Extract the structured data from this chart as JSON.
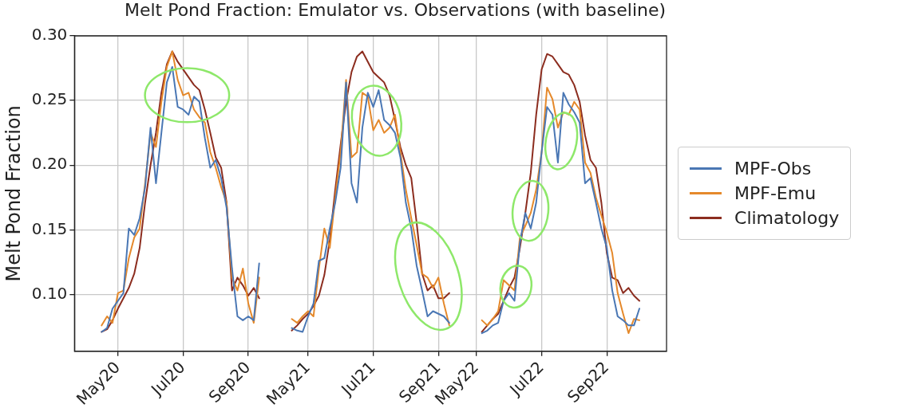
{
  "chart_data": {
    "type": "line",
    "title": "Melt Pond Fraction: Emulator vs. Observations (with baseline)",
    "ylabel": "Melt Pond Fraction",
    "categories": [
      null,
      null,
      null,
      null,
      null,
      null,
      null,
      null,
      "May20",
      null,
      null,
      null,
      null,
      null,
      null,
      null,
      null,
      null,
      null,
      null,
      "Jul20",
      null,
      null,
      null,
      null,
      null,
      null,
      null,
      null,
      null,
      null,
      null,
      "Sep20",
      null,
      null,
      null,
      null,
      null,
      null,
      null,
      null,
      null,
      null,
      "May21",
      null,
      null,
      null,
      null,
      null,
      null,
      null,
      null,
      null,
      null,
      null,
      "Jul21",
      null,
      null,
      null,
      null,
      null,
      null,
      null,
      null,
      null,
      null,
      null,
      "Sep21",
      null,
      null,
      null,
      null,
      null,
      null,
      "May22",
      null,
      null,
      null,
      null,
      null,
      null,
      null,
      null,
      null,
      null,
      null,
      "Jul22",
      null,
      null,
      null,
      null,
      null,
      null,
      null,
      null,
      null,
      null,
      null,
      "Sep22",
      null,
      null,
      null,
      null,
      null,
      null,
      null,
      null,
      null,
      null,
      null
    ],
    "ylim": [
      0.056,
      0.3
    ],
    "yticks": [
      {
        "value": 0.1,
        "label": "0.10"
      },
      {
        "value": 0.15,
        "label": "0.15"
      },
      {
        "value": 0.2,
        "label": "0.20"
      },
      {
        "value": 0.25,
        "label": "0.25"
      },
      {
        "value": 0.3,
        "label": "0.30"
      }
    ],
    "grid": true,
    "legend": "right",
    "marker": "none",
    "line_style": "solid",
    "series": [
      {
        "name": "MPF-Obs",
        "color": "#4a77b4",
        "values": [
          null,
          null,
          null,
          null,
          null,
          0.071,
          0.074,
          0.089,
          0.095,
          0.101,
          0.151,
          0.146,
          0.159,
          0.183,
          0.229,
          0.186,
          0.225,
          0.264,
          0.276,
          0.245,
          0.243,
          0.239,
          0.253,
          0.249,
          0.221,
          0.198,
          0.204,
          0.19,
          0.167,
          0.12,
          0.083,
          0.08,
          0.083,
          0.08,
          0.124,
          null,
          null,
          null,
          null,
          null,
          0.074,
          0.072,
          0.071,
          0.083,
          0.093,
          0.126,
          0.128,
          0.151,
          0.171,
          0.198,
          0.264,
          0.186,
          0.171,
          0.229,
          0.256,
          0.245,
          0.258,
          0.235,
          0.231,
          0.225,
          0.206,
          0.171,
          0.151,
          0.122,
          0.103,
          0.083,
          0.087,
          0.085,
          0.083,
          0.078,
          null,
          null,
          null,
          null,
          null,
          0.07,
          0.072,
          0.076,
          0.078,
          0.095,
          0.101,
          0.095,
          0.14,
          0.163,
          0.151,
          0.171,
          0.21,
          0.245,
          0.239,
          0.202,
          0.256,
          0.247,
          0.241,
          0.233,
          0.186,
          0.19,
          0.171,
          0.151,
          0.136,
          0.103,
          0.083,
          0.08,
          0.076,
          0.076,
          0.089,
          null,
          null,
          null,
          null,
          null
        ]
      },
      {
        "name": "MPF-Emu",
        "color": "#e5892b",
        "values": [
          null,
          null,
          null,
          null,
          null,
          0.076,
          0.083,
          0.078,
          0.101,
          0.103,
          0.128,
          0.144,
          0.151,
          0.186,
          0.225,
          0.214,
          0.249,
          0.276,
          0.288,
          0.266,
          0.254,
          0.256,
          0.243,
          0.237,
          0.233,
          0.21,
          0.198,
          0.183,
          0.171,
          0.113,
          0.103,
          0.12,
          0.093,
          0.078,
          0.113,
          null,
          null,
          null,
          null,
          null,
          0.081,
          0.078,
          0.083,
          0.087,
          0.083,
          0.12,
          0.151,
          0.136,
          0.175,
          0.21,
          0.266,
          0.206,
          0.21,
          0.256,
          0.253,
          0.227,
          0.235,
          0.225,
          0.229,
          0.239,
          0.21,
          0.181,
          0.159,
          0.138,
          0.116,
          0.113,
          0.105,
          0.113,
          0.093,
          0.076,
          null,
          null,
          null,
          null,
          null,
          0.08,
          0.076,
          0.081,
          0.087,
          0.111,
          0.107,
          0.103,
          0.144,
          0.153,
          0.163,
          0.181,
          0.21,
          0.26,
          0.251,
          0.229,
          0.241,
          0.239,
          0.249,
          0.243,
          0.202,
          0.194,
          0.175,
          0.161,
          0.148,
          0.132,
          0.101,
          0.085,
          0.07,
          0.081,
          0.08,
          null,
          null,
          null,
          null,
          null
        ]
      },
      {
        "name": "Climatology",
        "color": "#8c2d1f",
        "values": [
          null,
          null,
          null,
          null,
          null,
          0.071,
          0.073,
          0.08,
          0.089,
          0.097,
          0.105,
          0.116,
          0.136,
          0.171,
          0.2,
          0.225,
          0.256,
          0.278,
          0.288,
          0.28,
          0.274,
          0.268,
          0.262,
          0.258,
          0.243,
          0.225,
          0.206,
          0.198,
          0.171,
          0.103,
          0.113,
          0.107,
          0.099,
          0.105,
          0.097,
          null,
          null,
          null,
          null,
          null,
          0.072,
          0.076,
          0.081,
          0.085,
          0.091,
          0.099,
          0.115,
          0.142,
          0.181,
          0.216,
          0.249,
          0.272,
          0.284,
          0.288,
          0.28,
          0.272,
          0.268,
          0.264,
          0.254,
          0.235,
          0.214,
          0.2,
          0.19,
          0.155,
          0.116,
          0.103,
          0.107,
          0.097,
          0.097,
          0.101,
          null,
          null,
          null,
          null,
          null,
          0.071,
          0.076,
          0.081,
          0.085,
          0.095,
          0.105,
          0.113,
          0.136,
          0.163,
          0.194,
          0.239,
          0.274,
          0.286,
          0.284,
          0.278,
          0.272,
          0.27,
          0.262,
          0.249,
          0.223,
          0.204,
          0.198,
          0.171,
          0.132,
          0.113,
          0.111,
          0.101,
          0.105,
          0.099,
          0.095,
          null,
          null,
          null,
          null,
          null
        ]
      }
    ]
  }
}
